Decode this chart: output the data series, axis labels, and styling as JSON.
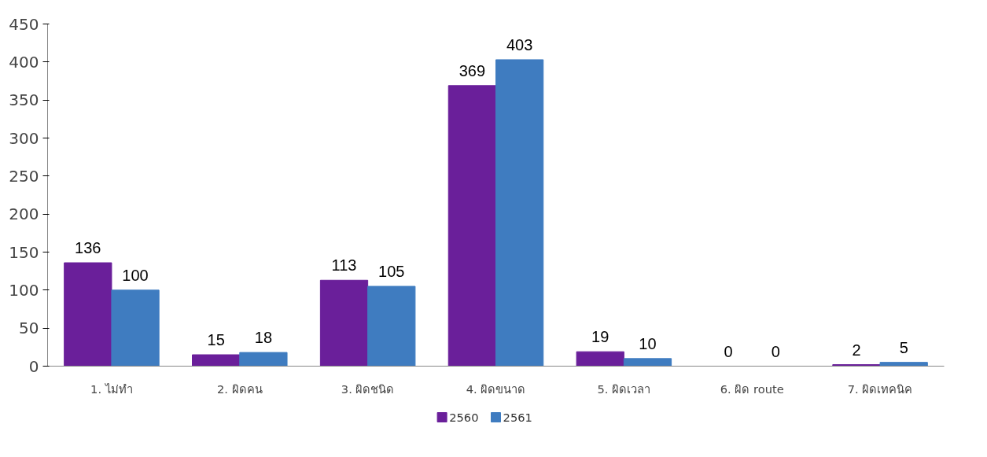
{
  "chart_data": {
    "type": "bar",
    "categories": [
      "1. ไม่ทำ",
      "2. ผิดคน",
      "3. ผิดชนิด",
      "4. ผิดขนาด",
      "5. ผิดเวลา",
      "6. ผิด route",
      "7. ผิดเทคนิค"
    ],
    "series": [
      {
        "name": "2560",
        "color": "#6a1f9a",
        "values": [
          136,
          15,
          113,
          369,
          19,
          0,
          2
        ]
      },
      {
        "name": "2561",
        "color": "#3f7cc0",
        "values": [
          100,
          18,
          105,
          403,
          10,
          0,
          5
        ]
      }
    ],
    "ylim": [
      0,
      450
    ],
    "yticks": [
      0,
      50,
      100,
      150,
      200,
      250,
      300,
      350,
      400,
      450
    ],
    "grid": false,
    "legend": "bottom",
    "data_labels": true
  }
}
